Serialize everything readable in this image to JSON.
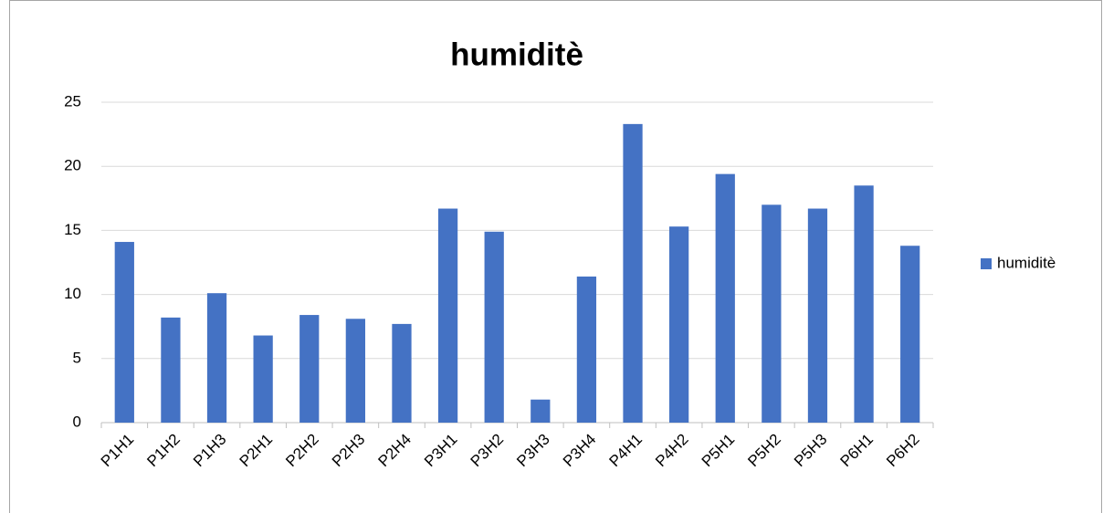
{
  "chart_data": {
    "type": "bar",
    "title": "humiditè",
    "categories": [
      "P1H1",
      "P1H2",
      "P1H3",
      "P2H1",
      "P2H2",
      "P2H3",
      "P2H4",
      "P3H1",
      "P3H2",
      "P3H3",
      "P3H4",
      "P4H1",
      "P4H2",
      "P5H1",
      "P5H2",
      "P5H3",
      "P6H1",
      "P6H2"
    ],
    "series": [
      {
        "name": "humiditè",
        "color": "#4472c4",
        "values": [
          14.1,
          8.2,
          10.1,
          6.8,
          8.4,
          8.1,
          7.7,
          16.7,
          14.9,
          1.8,
          11.4,
          23.3,
          15.3,
          19.4,
          17.0,
          16.7,
          18.5,
          13.8
        ]
      }
    ],
    "ylim": [
      0,
      25
    ],
    "yticks": [
      0,
      5,
      10,
      15,
      20,
      25
    ],
    "grid": true,
    "legend": "right"
  }
}
